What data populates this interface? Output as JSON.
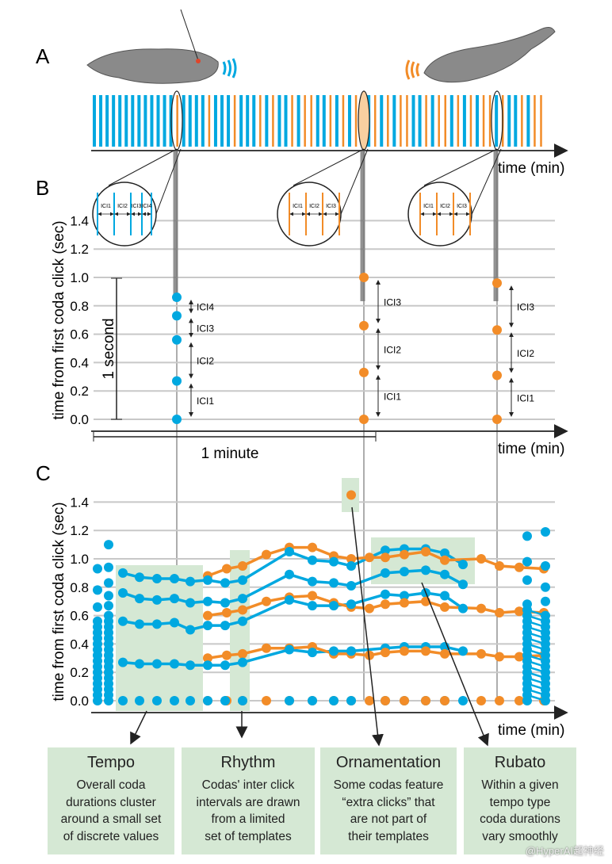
{
  "panels": {
    "a": "A",
    "b": "B",
    "c": "C"
  },
  "axis": {
    "time": "time (min)",
    "ylabel": "time from first coda click (sec)"
  },
  "colors": {
    "whale1": "#00a8e0",
    "whale2": "#f28c28",
    "highlight": "#d5e8d4",
    "grid": "#c8c8c8"
  },
  "panel_a": {
    "click_train": "BBBBBBBBBBBBBOBBBBOBBBOBBBOBOBBOBOOBBOBOBOOBOBOBOOBBOBOOBOBOBOOBOBBOBOO"
  },
  "panel_b": {
    "scale_bar_second": "1 second",
    "scale_bar_minute": "1 minute",
    "codas": [
      {
        "color": "blue",
        "clicks": [
          0,
          0.27,
          0.56,
          0.73,
          0.86
        ],
        "ici": [
          "ICI1",
          "ICI2",
          "ICI3",
          "ICI4"
        ]
      },
      {
        "color": "orange",
        "clicks": [
          0,
          0.33,
          0.66,
          1.0
        ],
        "ici": [
          "ICI1",
          "ICI2",
          "ICI3"
        ]
      },
      {
        "color": "orange",
        "clicks": [
          0,
          0.31,
          0.63,
          0.96
        ],
        "ici": [
          "ICI1",
          "ICI2",
          "ICI3"
        ]
      }
    ]
  },
  "chart_data": {
    "type": "scatter",
    "xlabel": "time (min)",
    "ylabel": "time from first coda click (sec)",
    "yticks": [
      "0.0",
      "0.2",
      "0.4",
      "0.6",
      "0.8",
      "1.0",
      "1.2",
      "1.4"
    ],
    "ylim": [
      0,
      1.4
    ],
    "grid": true,
    "codas": [
      {
        "color": "blue",
        "clicks": [
          0,
          0.27,
          0.56,
          0.76,
          0.9
        ]
      },
      {
        "color": "blue",
        "clicks": [
          0,
          0.26,
          0.54,
          0.72,
          0.87
        ]
      },
      {
        "color": "blue",
        "clicks": [
          0,
          0.26,
          0.54,
          0.71,
          0.86
        ]
      },
      {
        "color": "blue",
        "clicks": [
          0,
          0.26,
          0.55,
          0.72,
          0.86
        ]
      },
      {
        "color": "blue",
        "clicks": [
          0,
          0.25,
          0.5,
          0.69,
          0.84
        ]
      },
      {
        "color": "orange",
        "clicks": [
          0,
          0.3,
          0.6,
          0.88
        ]
      },
      {
        "color": "blue",
        "clicks": [
          0,
          0.25,
          0.53,
          0.7,
          0.85
        ]
      },
      {
        "color": "orange",
        "clicks": [
          0,
          0.32,
          0.62,
          0.93
        ]
      },
      {
        "color": "blue",
        "clicks": [
          0,
          0.25,
          0.53,
          0.69,
          0.83
        ]
      },
      {
        "color": "orange",
        "clicks": [
          0,
          0.33,
          0.64,
          0.95
        ]
      },
      {
        "color": "blue",
        "clicks": [
          0,
          0.27,
          0.56,
          0.72,
          0.85
        ]
      },
      {
        "color": "orange",
        "clicks": [
          0,
          0.37,
          0.7,
          1.03
        ]
      },
      {
        "color": "orange",
        "clicks": [
          0,
          0.37,
          0.73,
          1.08
        ]
      },
      {
        "color": "blue",
        "clicks": [
          0,
          0.36,
          0.71,
          0.89,
          1.05
        ]
      },
      {
        "color": "orange",
        "clicks": [
          0,
          0.38,
          0.74,
          1.08
        ]
      },
      {
        "color": "blue",
        "clicks": [
          0,
          0.34,
          0.67,
          0.84,
          0.99
        ]
      },
      {
        "color": "orange",
        "clicks": [
          0,
          0.33,
          0.69,
          1.02
        ]
      },
      {
        "color": "blue",
        "clicks": [
          0,
          0.35,
          0.67,
          0.83,
          0.98
        ]
      },
      {
        "color": "orange",
        "clicks": [
          0,
          0.33,
          0.66,
          1.0,
          1.45
        ]
      },
      {
        "color": "blue",
        "clicks": [
          0,
          0.35,
          0.68,
          0.81,
          0.95
        ]
      },
      {
        "color": "orange",
        "clicks": [
          0,
          0.32,
          0.65,
          1.01
        ]
      },
      {
        "color": "blue",
        "clicks": [
          0,
          0.37,
          0.75,
          0.9,
          1.06
        ]
      },
      {
        "color": "orange",
        "clicks": [
          0,
          0.34,
          0.68,
          1.01
        ]
      },
      {
        "color": "blue",
        "clicks": [
          0,
          0.38,
          0.74,
          0.91,
          1.07
        ]
      },
      {
        "color": "orange",
        "clicks": [
          0,
          0.35,
          0.69,
          1.03
        ]
      },
      {
        "color": "blue",
        "clicks": [
          0,
          0.38,
          0.76,
          0.92,
          1.07
        ]
      },
      {
        "color": "orange",
        "clicks": [
          0,
          0.35,
          0.7,
          1.05
        ]
      },
      {
        "color": "blue",
        "clicks": [
          0,
          0.38,
          0.74,
          0.89,
          1.04
        ]
      },
      {
        "color": "orange",
        "clicks": [
          0,
          0.33,
          0.66,
          0.99
        ]
      },
      {
        "color": "blue",
        "clicks": [
          0,
          0.35,
          0.65,
          0.82,
          0.96
        ]
      },
      {
        "color": "orange",
        "clicks": [
          0,
          0.33,
          0.65,
          1.0
        ]
      },
      {
        "color": "orange",
        "clicks": [
          0,
          0.31,
          0.62,
          0.95
        ]
      },
      {
        "color": "orange",
        "clicks": [
          0,
          0.31,
          0.63,
          0.94
        ]
      },
      {
        "color": "orange",
        "clicks": [
          0,
          0.32,
          0.62,
          0.93
        ]
      }
    ],
    "dense_codas": [
      {
        "color": "blue",
        "clicks": [
          0,
          0.04,
          0.08,
          0.12,
          0.16,
          0.2,
          0.24,
          0.28,
          0.32,
          0.36,
          0.4,
          0.44,
          0.48,
          0.52,
          0.56,
          0.66,
          0.78,
          0.93
        ]
      },
      {
        "color": "blue",
        "clicks": [
          0,
          0.04,
          0.08,
          0.12,
          0.16,
          0.2,
          0.24,
          0.28,
          0.32,
          0.36,
          0.4,
          0.44,
          0.48,
          0.52,
          0.56,
          0.6,
          0.67,
          0.74,
          0.83,
          0.94,
          1.1
        ]
      },
      {
        "color": "blue",
        "clicks": [
          0,
          0.04,
          0.08,
          0.12,
          0.16,
          0.2,
          0.24,
          0.28,
          0.32,
          0.36,
          0.4,
          0.44,
          0.48,
          0.52,
          0.56,
          0.6,
          0.64,
          0.68,
          0.85,
          0.98,
          1.16
        ]
      },
      {
        "color": "blue",
        "clicks": [
          0,
          0.04,
          0.08,
          0.12,
          0.16,
          0.2,
          0.24,
          0.28,
          0.32,
          0.36,
          0.4,
          0.44,
          0.48,
          0.52,
          0.56,
          0.6,
          0.7,
          0.8,
          0.95,
          1.19
        ]
      }
    ]
  },
  "boxes": [
    {
      "title": "Tempo",
      "lines": [
        "Overall coda",
        "durations cluster",
        "around a small set",
        "of discrete values"
      ]
    },
    {
      "title": "Rhythm",
      "lines": [
        "Codas' inter click",
        "intervals are drawn",
        "from a limited",
        "set of templates"
      ]
    },
    {
      "title": "Ornamentation",
      "lines": [
        "Some codas feature",
        "“extra clicks” that",
        "are not part of",
        "their templates"
      ]
    },
    {
      "title": "Rubato",
      "lines": [
        "Within a given",
        "tempo type",
        "coda durations",
        "vary smoothly"
      ]
    }
  ],
  "watermark": "@HyperAI超神经"
}
